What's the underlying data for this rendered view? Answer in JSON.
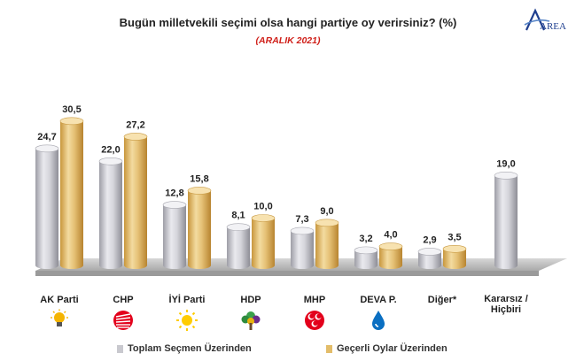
{
  "header": {
    "title": "Bugün milletvekili seçimi olsa hangi partiye oy verirsiniz? (%)",
    "subtitle": "(ARALIK 2021)",
    "logo_text": "AREA"
  },
  "colors": {
    "series_1": "#c9c9cf",
    "series_2": "#e3bd6a",
    "subtitle": "#d0201a",
    "floor": "#b9b9b9"
  },
  "legend": [
    {
      "label": "Toplam Seçmen Üzerinden"
    },
    {
      "label": "Geçerli Oylar Üzerinden"
    }
  ],
  "icons": [
    {
      "party": "AK Parti",
      "icon": "lightbulb-icon"
    },
    {
      "party": "CHP",
      "icon": "six-arrows-icon"
    },
    {
      "party": "İYİ Parti",
      "icon": "sun-icon"
    },
    {
      "party": "HDP",
      "icon": "tree-icon"
    },
    {
      "party": "MHP",
      "icon": "three-crescents-icon"
    },
    {
      "party": "DEVA P.",
      "icon": "water-drop-icon"
    }
  ],
  "chart_data": {
    "type": "bar",
    "title": "Bugün milletvekili seçimi olsa hangi partiye oy verirsiniz? (%)",
    "subtitle": "(ARALIK 2021)",
    "categories": [
      "AK Parti",
      "CHP",
      "İYİ Parti",
      "HDP",
      "MHP",
      "DEVA P.",
      "Diğer*",
      "Kararsız / Hiçbiri"
    ],
    "series": [
      {
        "name": "Toplam Seçmen Üzerinden",
        "values": [
          24.7,
          22.0,
          12.8,
          8.1,
          7.3,
          3.2,
          2.9,
          19.0
        ],
        "labels": [
          "24,7",
          "22,0",
          "12,8",
          "8,1",
          "7,3",
          "3,2",
          "2,9",
          "19,0"
        ]
      },
      {
        "name": "Geçerli Oylar Üzerinden",
        "values": [
          30.5,
          27.2,
          15.8,
          10.0,
          9.0,
          4.0,
          3.5,
          null
        ],
        "labels": [
          "30,5",
          "27,2",
          "15,8",
          "10,0",
          "9,0",
          "4,0",
          "3,5",
          ""
        ]
      }
    ],
    "xlabel": "",
    "ylabel": "",
    "ylim": [
      0,
      31
    ],
    "grid": false,
    "legend_position": "bottom"
  }
}
